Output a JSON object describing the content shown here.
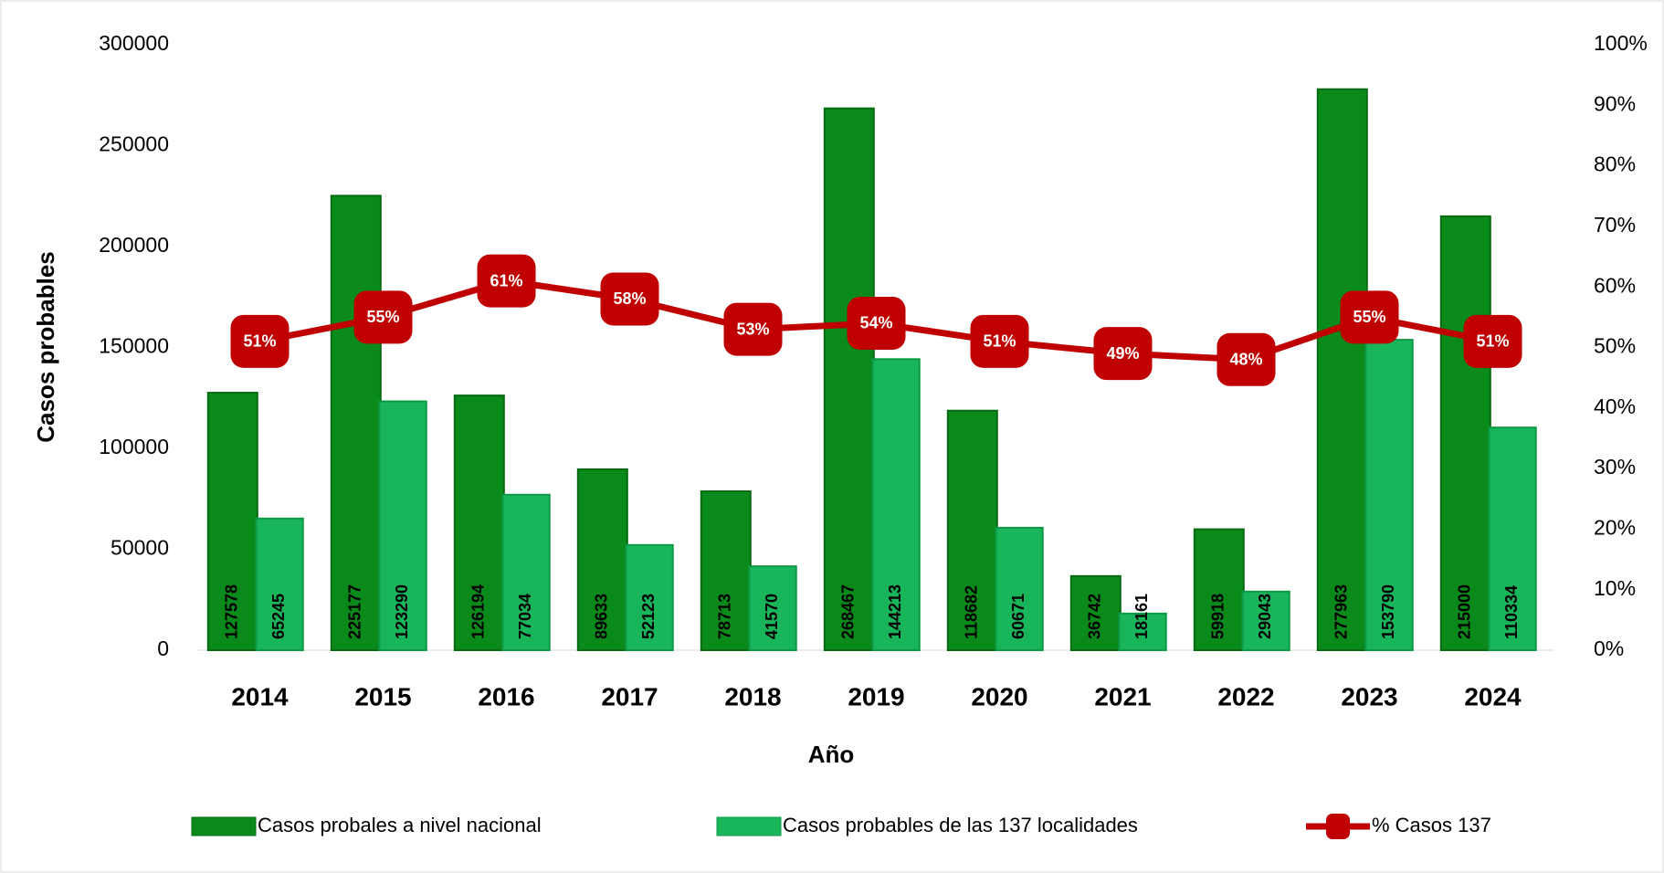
{
  "chart_data": {
    "type": "bar",
    "x_label": "Año",
    "y_label": "Casos probables",
    "categories": [
      "2014",
      "2015",
      "2016",
      "2017",
      "2018",
      "2019",
      "2020",
      "2021",
      "2022",
      "2023",
      "2024"
    ],
    "series": [
      {
        "name": "Casos probales a nivel nacional",
        "color": "#0a8a1a",
        "values": [
          127578,
          225177,
          126194,
          89633,
          78713,
          268467,
          118682,
          36742,
          59918,
          277963,
          215000
        ]
      },
      {
        "name": "Casos probables de las 137 localidades",
        "color": "#19b55a",
        "values": [
          65245,
          123290,
          77034,
          52123,
          41570,
          144213,
          60671,
          18161,
          29043,
          153790,
          110334
        ]
      },
      {
        "name": "% Casos 137",
        "type": "line",
        "axis": "y2",
        "color": "#c00000",
        "values": [
          51,
          55,
          61,
          58,
          53,
          54,
          51,
          49,
          48,
          55,
          51
        ],
        "value_labels": [
          "51%",
          "55%",
          "61%",
          "58%",
          "53%",
          "54%",
          "51%",
          "49%",
          "48%",
          "55%",
          "51%"
        ]
      }
    ],
    "ylim": [
      0,
      300000
    ],
    "yticks": [
      0,
      50000,
      100000,
      150000,
      200000,
      250000,
      300000
    ],
    "y2lim": [
      0,
      100
    ],
    "y2ticks": [
      {
        "value": 0,
        "label": "0%"
      },
      {
        "value": 10,
        "label": "10%"
      },
      {
        "value": 20,
        "label": "20%"
      },
      {
        "value": 30,
        "label": "30%"
      },
      {
        "value": 40,
        "label": "40%"
      },
      {
        "value": 50,
        "label": "50%"
      },
      {
        "value": 60,
        "label": "60%"
      },
      {
        "value": 70,
        "label": "70%"
      },
      {
        "value": 80,
        "label": "80%"
      },
      {
        "value": 90,
        "label": "90%"
      },
      {
        "value": 100,
        "label": "100%"
      }
    ],
    "grid": false,
    "legend": "bottom"
  }
}
